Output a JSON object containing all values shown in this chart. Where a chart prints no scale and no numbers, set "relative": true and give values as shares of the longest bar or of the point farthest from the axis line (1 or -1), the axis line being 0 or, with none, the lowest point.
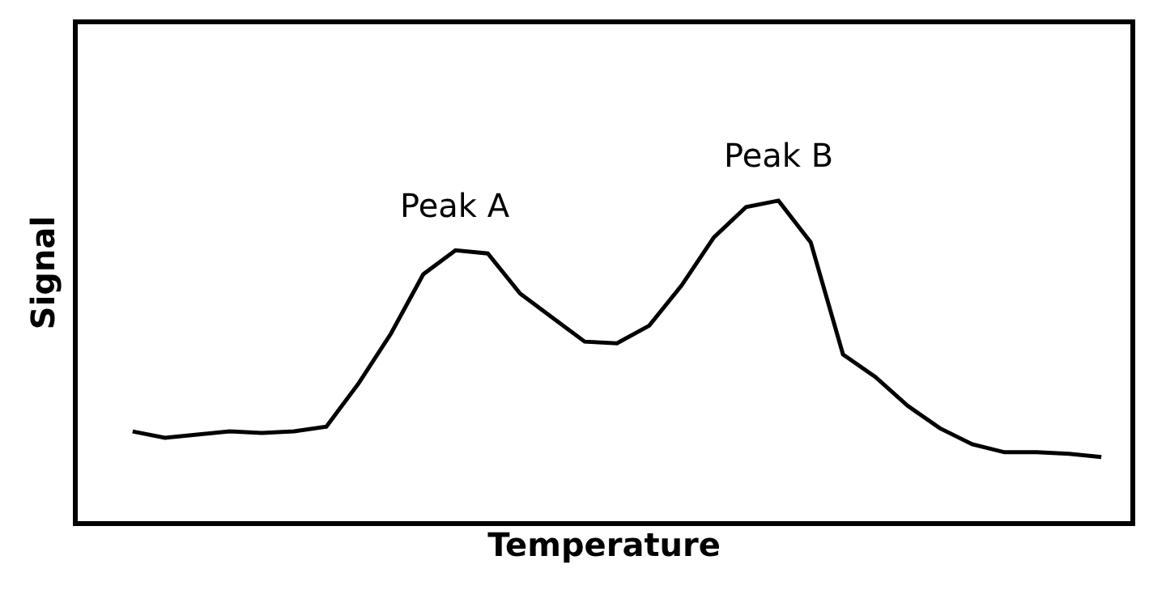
{
  "chart_data": {
    "type": "line",
    "relative": true,
    "xlabel": "Temperature",
    "ylabel": "Signal",
    "categories": [
      null,
      null,
      null,
      null,
      null,
      null,
      null,
      null,
      null,
      null,
      null,
      null,
      null,
      null,
      null,
      null,
      null,
      null,
      null,
      null,
      null,
      null,
      null,
      null,
      null,
      null,
      null,
      null,
      null,
      null,
      null
    ],
    "series": [
      {
        "color": "#000000",
        "values": [
          0.28,
          0.26,
          0.27,
          0.28,
          0.275,
          0.28,
          0.295,
          0.43,
          0.585,
          0.77,
          0.845,
          0.835,
          0.71,
          0.635,
          0.56,
          0.555,
          0.61,
          0.735,
          0.885,
          0.98,
          1,
          0.87,
          0.52,
          0.45,
          0.36,
          0.29,
          0.24,
          0.215,
          0.215,
          0.21,
          0.2
        ]
      }
    ],
    "annotations": [
      "Peak A",
      "Peak B"
    ],
    "tick_labels": false,
    "marker": "none",
    "line_style": "solid"
  }
}
